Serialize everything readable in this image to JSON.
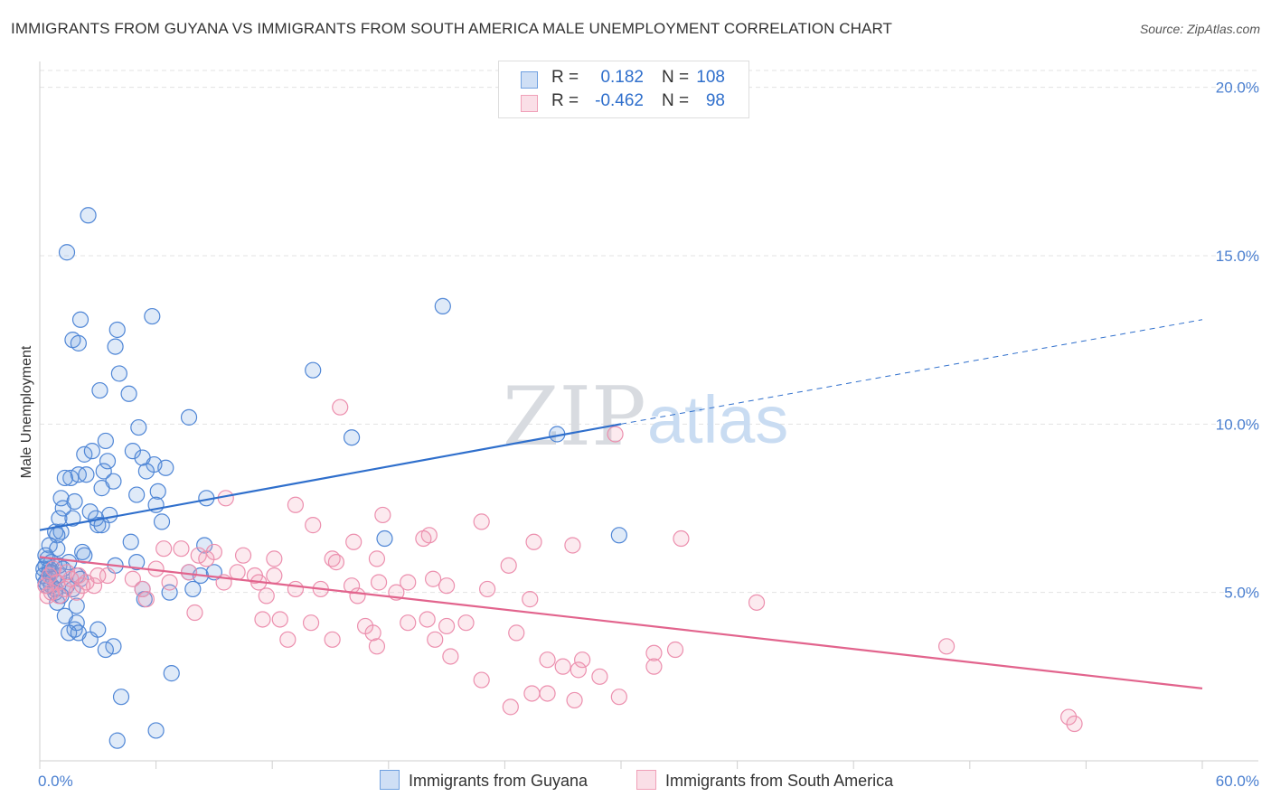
{
  "title": "IMMIGRANTS FROM GUYANA VS IMMIGRANTS FROM SOUTH AMERICA MALE UNEMPLOYMENT CORRELATION CHART",
  "source": "Source: ZipAtlas.com",
  "watermark": {
    "zip": "ZIP",
    "atlas": "atlas"
  },
  "legend": {
    "rows": [
      {
        "r_label": "R =",
        "r_value": "0.182",
        "n_label": "N =",
        "n_value": "108",
        "color": "#6fa0e0"
      },
      {
        "r_label": "R =",
        "r_value": "-0.462",
        "n_label": "N =",
        "n_value": "98",
        "color": "#f0a0b8"
      }
    ]
  },
  "bottom_legend": [
    {
      "label": "Immigrants from Guyana",
      "color": "#6fa0e0"
    },
    {
      "label": "Immigrants from South America",
      "color": "#f0a0b8"
    }
  ],
  "chart_data": {
    "type": "scatter",
    "title": "IMMIGRANTS FROM GUYANA VS IMMIGRANTS FROM SOUTH AMERICA MALE UNEMPLOYMENT CORRELATION CHART",
    "xlabel": "",
    "ylabel": "Male Unemployment",
    "xlim": [
      0,
      60
    ],
    "ylim": [
      0,
      20.5
    ],
    "x_tick_labels": [
      "0.0%",
      "60.0%"
    ],
    "y_ticks": [
      5,
      10,
      15,
      20
    ],
    "y_tick_labels": [
      "5.0%",
      "10.0%",
      "15.0%",
      "20.0%"
    ],
    "grid": true,
    "legend_position": "top-center",
    "series": [
      {
        "name": "Immigrants from Guyana",
        "color": "#6fa0e0",
        "line_color": "#2f6fcc",
        "trend": {
          "x": [
            0,
            30
          ],
          "y": [
            6.85,
            10.0
          ],
          "dashed_extension": {
            "x": [
              30,
              60
            ],
            "y": [
              10.0,
              13.1
            ]
          }
        },
        "points": [
          [
            2.5,
            16.2
          ],
          [
            1.4,
            15.1
          ],
          [
            5.8,
            13.2
          ],
          [
            2.1,
            13.1
          ],
          [
            4.0,
            12.8
          ],
          [
            1.7,
            12.5
          ],
          [
            2.0,
            12.4
          ],
          [
            3.9,
            12.3
          ],
          [
            4.1,
            11.5
          ],
          [
            3.1,
            11.0
          ],
          [
            4.6,
            10.9
          ],
          [
            7.7,
            10.2
          ],
          [
            5.1,
            9.9
          ],
          [
            3.4,
            9.5
          ],
          [
            2.3,
            9.1
          ],
          [
            2.7,
            9.2
          ],
          [
            3.5,
            8.9
          ],
          [
            4.8,
            9.2
          ],
          [
            5.3,
            9.0
          ],
          [
            5.9,
            8.8
          ],
          [
            6.5,
            8.7
          ],
          [
            3.3,
            8.6
          ],
          [
            5.5,
            8.6
          ],
          [
            1.6,
            8.4
          ],
          [
            2.0,
            8.5
          ],
          [
            2.4,
            8.5
          ],
          [
            3.8,
            8.3
          ],
          [
            1.3,
            8.4
          ],
          [
            3.2,
            8.1
          ],
          [
            6.1,
            8.0
          ],
          [
            5.0,
            7.9
          ],
          [
            1.1,
            7.8
          ],
          [
            1.8,
            7.7
          ],
          [
            6.0,
            7.6
          ],
          [
            8.6,
            7.8
          ],
          [
            1.2,
            7.5
          ],
          [
            2.6,
            7.4
          ],
          [
            3.6,
            7.3
          ],
          [
            1.0,
            7.2
          ],
          [
            1.7,
            7.2
          ],
          [
            3.0,
            7.0
          ],
          [
            6.3,
            7.1
          ],
          [
            2.9,
            7.2
          ],
          [
            3.2,
            7.0
          ],
          [
            0.8,
            6.8
          ],
          [
            1.1,
            6.8
          ],
          [
            0.9,
            6.7
          ],
          [
            4.7,
            6.5
          ],
          [
            8.5,
            6.4
          ],
          [
            0.5,
            6.4
          ],
          [
            0.9,
            6.3
          ],
          [
            2.2,
            6.2
          ],
          [
            2.3,
            6.1
          ],
          [
            5.0,
            5.9
          ],
          [
            0.4,
            6.0
          ],
          [
            0.6,
            5.9
          ],
          [
            3.9,
            5.8
          ],
          [
            0.3,
            5.8
          ],
          [
            0.5,
            5.7
          ],
          [
            0.2,
            5.7
          ],
          [
            0.6,
            5.6
          ],
          [
            0.2,
            5.5
          ],
          [
            0.4,
            5.4
          ],
          [
            1.0,
            5.5
          ],
          [
            1.9,
            5.5
          ],
          [
            0.3,
            5.3
          ],
          [
            8.3,
            5.5
          ],
          [
            7.7,
            5.6
          ],
          [
            9.0,
            5.6
          ],
          [
            0.6,
            5.2
          ],
          [
            1.4,
            5.2
          ],
          [
            0.8,
            5.0
          ],
          [
            1.7,
            5.1
          ],
          [
            5.3,
            5.1
          ],
          [
            6.7,
            5.0
          ],
          [
            7.9,
            5.1
          ],
          [
            5.4,
            4.8
          ],
          [
            0.9,
            4.7
          ],
          [
            1.9,
            4.6
          ],
          [
            1.3,
            4.3
          ],
          [
            1.8,
            3.9
          ],
          [
            1.9,
            4.1
          ],
          [
            1.5,
            3.8
          ],
          [
            2.0,
            3.8
          ],
          [
            3.0,
            3.9
          ],
          [
            2.6,
            3.6
          ],
          [
            3.8,
            3.4
          ],
          [
            3.4,
            3.3
          ],
          [
            6.8,
            2.6
          ],
          [
            4.2,
            1.9
          ],
          [
            6.0,
            0.9
          ],
          [
            4.0,
            0.6
          ],
          [
            20.8,
            13.5
          ],
          [
            14.1,
            11.6
          ],
          [
            16.1,
            9.6
          ],
          [
            26.7,
            9.7
          ],
          [
            17.8,
            6.6
          ],
          [
            29.9,
            6.7
          ],
          [
            0.5,
            5.6
          ],
          [
            1.0,
            5.8
          ],
          [
            0.7,
            5.4
          ],
          [
            1.2,
            5.7
          ],
          [
            0.3,
            6.1
          ],
          [
            1.5,
            5.9
          ],
          [
            0.8,
            5.1
          ],
          [
            2.1,
            5.4
          ],
          [
            1.1,
            4.9
          ],
          [
            0.4,
            5.2
          ]
        ]
      },
      {
        "name": "Immigrants from South America",
        "color": "#f0a0b8",
        "line_color": "#e2648d",
        "trend": {
          "x": [
            0,
            60
          ],
          "y": [
            6.05,
            2.15
          ]
        },
        "points": [
          [
            15.5,
            10.5
          ],
          [
            29.7,
            9.7
          ],
          [
            9.6,
            7.8
          ],
          [
            13.2,
            7.6
          ],
          [
            17.7,
            7.3
          ],
          [
            22.8,
            7.1
          ],
          [
            14.1,
            7.0
          ],
          [
            20.1,
            6.7
          ],
          [
            19.8,
            6.6
          ],
          [
            16.2,
            6.5
          ],
          [
            25.5,
            6.5
          ],
          [
            33.1,
            6.6
          ],
          [
            27.5,
            6.4
          ],
          [
            6.4,
            6.3
          ],
          [
            7.3,
            6.3
          ],
          [
            8.2,
            6.1
          ],
          [
            9.0,
            6.2
          ],
          [
            10.5,
            6.1
          ],
          [
            12.1,
            6.0
          ],
          [
            15.1,
            6.0
          ],
          [
            17.4,
            6.0
          ],
          [
            24.2,
            5.8
          ],
          [
            8.6,
            6.0
          ],
          [
            15.3,
            5.9
          ],
          [
            10.2,
            5.6
          ],
          [
            6.0,
            5.7
          ],
          [
            7.7,
            5.6
          ],
          [
            6.7,
            5.3
          ],
          [
            12.1,
            5.5
          ],
          [
            11.1,
            5.5
          ],
          [
            16.1,
            5.2
          ],
          [
            17.5,
            5.3
          ],
          [
            19.0,
            5.3
          ],
          [
            20.3,
            5.4
          ],
          [
            21.0,
            5.2
          ],
          [
            23.1,
            5.1
          ],
          [
            2.0,
            5.5
          ],
          [
            3.5,
            5.5
          ],
          [
            4.8,
            5.4
          ],
          [
            2.8,
            5.2
          ],
          [
            5.3,
            5.1
          ],
          [
            13.2,
            5.1
          ],
          [
            14.5,
            5.1
          ],
          [
            9.5,
            5.3
          ],
          [
            11.3,
            5.3
          ],
          [
            16.4,
            4.9
          ],
          [
            18.4,
            5.0
          ],
          [
            11.7,
            4.9
          ],
          [
            5.5,
            4.8
          ],
          [
            25.3,
            4.8
          ],
          [
            37.0,
            4.7
          ],
          [
            8.0,
            4.4
          ],
          [
            11.5,
            4.2
          ],
          [
            12.4,
            4.2
          ],
          [
            14.0,
            4.1
          ],
          [
            19.0,
            4.1
          ],
          [
            20.0,
            4.2
          ],
          [
            21.0,
            4.0
          ],
          [
            22.0,
            4.1
          ],
          [
            16.8,
            4.0
          ],
          [
            17.2,
            3.8
          ],
          [
            12.8,
            3.6
          ],
          [
            15.1,
            3.6
          ],
          [
            20.4,
            3.6
          ],
          [
            24.6,
            3.8
          ],
          [
            17.4,
            3.4
          ],
          [
            21.2,
            3.1
          ],
          [
            26.2,
            3.0
          ],
          [
            28.0,
            3.0
          ],
          [
            31.7,
            3.2
          ],
          [
            32.8,
            3.3
          ],
          [
            46.8,
            3.4
          ],
          [
            27.0,
            2.8
          ],
          [
            27.8,
            2.7
          ],
          [
            28.9,
            2.5
          ],
          [
            22.8,
            2.4
          ],
          [
            31.7,
            2.8
          ],
          [
            25.4,
            2.0
          ],
          [
            26.2,
            2.0
          ],
          [
            27.6,
            1.8
          ],
          [
            29.9,
            1.9
          ],
          [
            24.3,
            1.6
          ],
          [
            53.1,
            1.3
          ],
          [
            53.4,
            1.1
          ],
          [
            0.5,
            5.5
          ],
          [
            0.9,
            5.3
          ],
          [
            1.3,
            5.1
          ],
          [
            0.4,
            4.9
          ],
          [
            1.6,
            5.4
          ],
          [
            0.7,
            5.7
          ],
          [
            1.9,
            5.0
          ],
          [
            2.4,
            5.3
          ],
          [
            0.3,
            5.2
          ],
          [
            1.0,
            4.9
          ],
          [
            3.0,
            5.5
          ],
          [
            2.2,
            5.2
          ],
          [
            0.6,
            5.0
          ],
          [
            1.4,
            5.6
          ]
        ]
      }
    ]
  }
}
